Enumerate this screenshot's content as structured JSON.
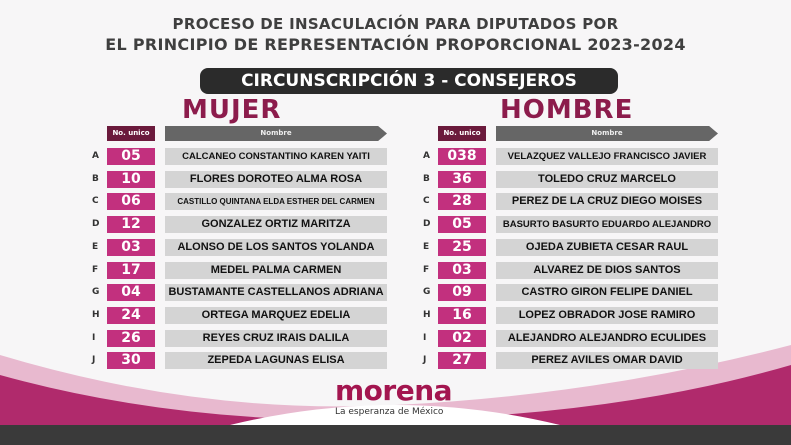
{
  "title_line1": "PROCESO DE INSACULACIÓN PARA DIPUTADOS POR",
  "title_line2": "EL PRINCIPIO DE REPRESENTACIÓN PROPORCIONAL 2023-2024",
  "circunscripcion": "CIRCUNSCRIPCIÓN 3 - CONSEJEROS",
  "header_no": "No. unico",
  "header_name": "Nombre",
  "mujer": {
    "title": "MUJER",
    "rows": [
      {
        "letter": "A",
        "no": "05",
        "name": "CALCANEO CONSTANTINO KAREN YAITI"
      },
      {
        "letter": "B",
        "no": "10",
        "name": "FLORES DOROTEO ALMA ROSA"
      },
      {
        "letter": "C",
        "no": "06",
        "name": "CASTILLO QUINTANA ELDA ESTHER DEL CARMEN"
      },
      {
        "letter": "D",
        "no": "12",
        "name": "GONZALEZ ORTIZ MARITZA"
      },
      {
        "letter": "E",
        "no": "03",
        "name": "ALONSO DE LOS SANTOS YOLANDA"
      },
      {
        "letter": "F",
        "no": "17",
        "name": "MEDEL PALMA CARMEN"
      },
      {
        "letter": "G",
        "no": "04",
        "name": "BUSTAMANTE CASTELLANOS ADRIANA"
      },
      {
        "letter": "H",
        "no": "24",
        "name": "ORTEGA MARQUEZ EDELIA"
      },
      {
        "letter": "I",
        "no": "26",
        "name": "REYES CRUZ IRAIS DALILA"
      },
      {
        "letter": "J",
        "no": "30",
        "name": "ZEPEDA LAGUNAS ELISA"
      }
    ]
  },
  "hombre": {
    "title": "HOMBRE",
    "rows": [
      {
        "letter": "A",
        "no": "038",
        "name": "VELAZQUEZ VALLEJO FRANCISCO JAVIER"
      },
      {
        "letter": "B",
        "no": "36",
        "name": "TOLEDO CRUZ MARCELO"
      },
      {
        "letter": "C",
        "no": "28",
        "name": "PEREZ DE LA CRUZ DIEGO MOISES"
      },
      {
        "letter": "D",
        "no": "05",
        "name": "BASURTO BASURTO EDUARDO ALEJANDRO"
      },
      {
        "letter": "E",
        "no": "25",
        "name": "OJEDA ZUBIETA CESAR RAUL"
      },
      {
        "letter": "F",
        "no": "03",
        "name": "ALVAREZ DE DIOS SANTOS"
      },
      {
        "letter": "G",
        "no": "09",
        "name": "CASTRO GIRON FELIPE DANIEL"
      },
      {
        "letter": "H",
        "no": "16",
        "name": "LOPEZ OBRADOR JOSE RAMIRO"
      },
      {
        "letter": "I",
        "no": "02",
        "name": "ALEJANDRO ALEJANDRO ECULIDES"
      },
      {
        "letter": "J",
        "no": "27",
        "name": "PEREZ AVILES OMAR DAVID"
      }
    ]
  },
  "logo": "morena",
  "tagline": "La esperanza de México",
  "colors": {
    "maroon": "#8c1c4c",
    "pink": "#c2307e",
    "dark": "#2b2b2b"
  }
}
